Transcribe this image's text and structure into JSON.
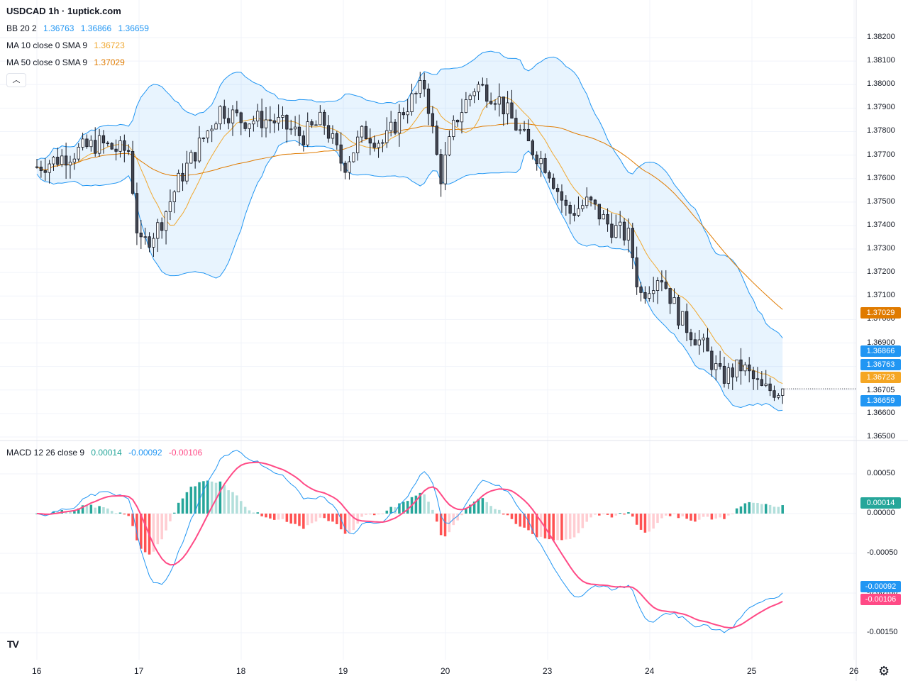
{
  "header": {
    "title": "USDCAD 1h · 1uptick.com",
    "collapse_icon": "chevron-up-icon"
  },
  "legend": {
    "bb": {
      "name": "BB 20 2",
      "values": [
        "1.36763",
        "1.36866",
        "1.36659"
      ],
      "color": "#2196f3"
    },
    "ma10": {
      "name": "MA 10 close 0 SMA 9",
      "value": "1.36723",
      "color": "#f0a830"
    },
    "ma50": {
      "name": "MA 50 close 0 SMA 9",
      "value": "1.37029",
      "color": "#e07b00"
    },
    "macd": {
      "name": "MACD 12 26 close 9",
      "values": [
        "0.00014",
        "-0.00092",
        "-0.00106"
      ],
      "colors": [
        "#26a69a",
        "#2196f3",
        "#ff4a86"
      ]
    }
  },
  "price_axis": {
    "ticks": [
      "1.38200",
      "1.38100",
      "1.38000",
      "1.37900",
      "1.37800",
      "1.37700",
      "1.37600",
      "1.37500",
      "1.37400",
      "1.37300",
      "1.37200",
      "1.37100",
      "1.37000",
      "1.36900",
      "1.36800",
      "1.36700",
      "1.36600",
      "1.36500"
    ],
    "current_price": "1.36705"
  },
  "macd_axis": {
    "ticks": [
      "0.00050",
      "0.00000",
      "-0.00050",
      "-0.00100",
      "-0.00150"
    ]
  },
  "time_axis": {
    "ticks": [
      "16",
      "17",
      "18",
      "19",
      "20",
      "23",
      "24",
      "25",
      "26"
    ]
  },
  "price_tags": [
    {
      "label": "1.37029",
      "color": "#e07b00"
    },
    {
      "label": "1.36866",
      "color": "#2196f3"
    },
    {
      "label": "1.36763",
      "color": "#2196f3"
    },
    {
      "label": "1.36723",
      "color": "#f5a623"
    },
    {
      "label": "1.36659",
      "color": "#2196f3"
    }
  ],
  "macd_tags": [
    {
      "label": "0.00014",
      "color": "#26a69a"
    },
    {
      "label": "-0.00092",
      "color": "#2196f3"
    },
    {
      "label": "-0.00106",
      "color": "#ff4a86"
    }
  ],
  "chart_data": {
    "type": "candlestick",
    "symbol": "USDCAD",
    "timeframe": "1h",
    "ylim": [
      1.3645,
      1.3825
    ],
    "macd_ylim": [
      -0.0017,
      0.0008
    ],
    "grid": true,
    "legend_placement": "top-left",
    "close_path": [
      [
        16.0,
        1.3765
      ],
      [
        16.3,
        1.377
      ],
      [
        16.6,
        1.3775
      ],
      [
        16.8,
        1.3772
      ],
      [
        16.9,
        1.3772
      ],
      [
        17.0,
        1.373
      ],
      [
        17.2,
        1.374
      ],
      [
        17.4,
        1.376
      ],
      [
        17.6,
        1.3775
      ],
      [
        17.8,
        1.379
      ],
      [
        18.0,
        1.3785
      ],
      [
        18.3,
        1.3785
      ],
      [
        18.6,
        1.3778
      ],
      [
        18.8,
        1.3785
      ],
      [
        19.0,
        1.3765
      ],
      [
        19.2,
        1.378
      ],
      [
        19.4,
        1.3775
      ],
      [
        19.6,
        1.379
      ],
      [
        19.8,
        1.38
      ],
      [
        19.95,
        1.376
      ],
      [
        20.1,
        1.3785
      ],
      [
        20.3,
        1.38
      ],
      [
        20.5,
        1.3795
      ],
      [
        20.8,
        1.3775
      ],
      [
        21.0,
        1.3765
      ],
      [
        21.2,
        1.3745
      ],
      [
        21.4,
        1.375
      ],
      [
        21.6,
        1.374
      ],
      [
        21.8,
        1.3735
      ],
      [
        21.9,
        1.371
      ],
      [
        22.1,
        1.372
      ],
      [
        22.3,
        1.37
      ],
      [
        22.5,
        1.369
      ],
      [
        22.7,
        1.3675
      ],
      [
        22.9,
        1.368
      ],
      [
        23.1,
        1.367
      ],
      [
        23.3,
        1.367
      ]
    ],
    "bb": {
      "upper_last": 1.36866,
      "middle_last": 1.36763,
      "lower_last": 1.36659
    },
    "ma10_last": 1.36723,
    "ma50_last": 1.37029,
    "macd": {
      "histogram_last": 0.00014,
      "macd_last": -0.00092,
      "signal_last": -0.00106
    }
  }
}
